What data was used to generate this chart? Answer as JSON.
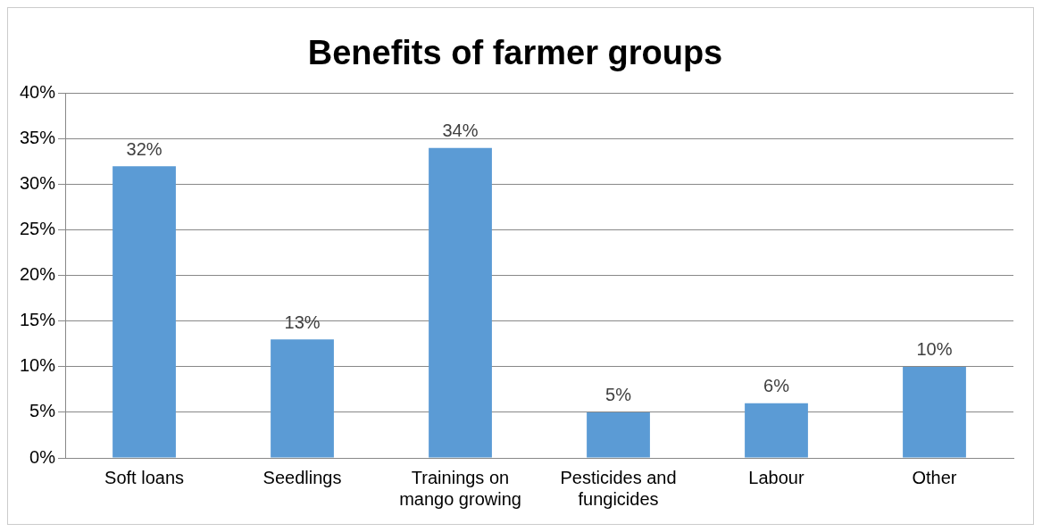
{
  "chart_data": {
    "type": "bar",
    "title": "Benefits of farmer groups",
    "categories": [
      "Soft loans",
      "Seedlings",
      "Trainings on mango growing",
      "Pesticides and fungicides",
      "Labour",
      "Other"
    ],
    "values": [
      32,
      13,
      34,
      5,
      6,
      10
    ],
    "value_labels": [
      "32%",
      "13%",
      "34%",
      "5%",
      "6%",
      "10%"
    ],
    "color": "#5b9bd5",
    "ylim": [
      0,
      40
    ],
    "yticks": [
      {
        "value": 0,
        "label": "0%"
      },
      {
        "value": 5,
        "label": "5%"
      },
      {
        "value": 10,
        "label": "10%"
      },
      {
        "value": 15,
        "label": "15%"
      },
      {
        "value": 20,
        "label": "20%"
      },
      {
        "value": 25,
        "label": "25%"
      },
      {
        "value": 30,
        "label": "30%"
      },
      {
        "value": 35,
        "label": "35%"
      },
      {
        "value": 40,
        "label": "40%"
      }
    ],
    "grid": "y",
    "legend": false
  }
}
